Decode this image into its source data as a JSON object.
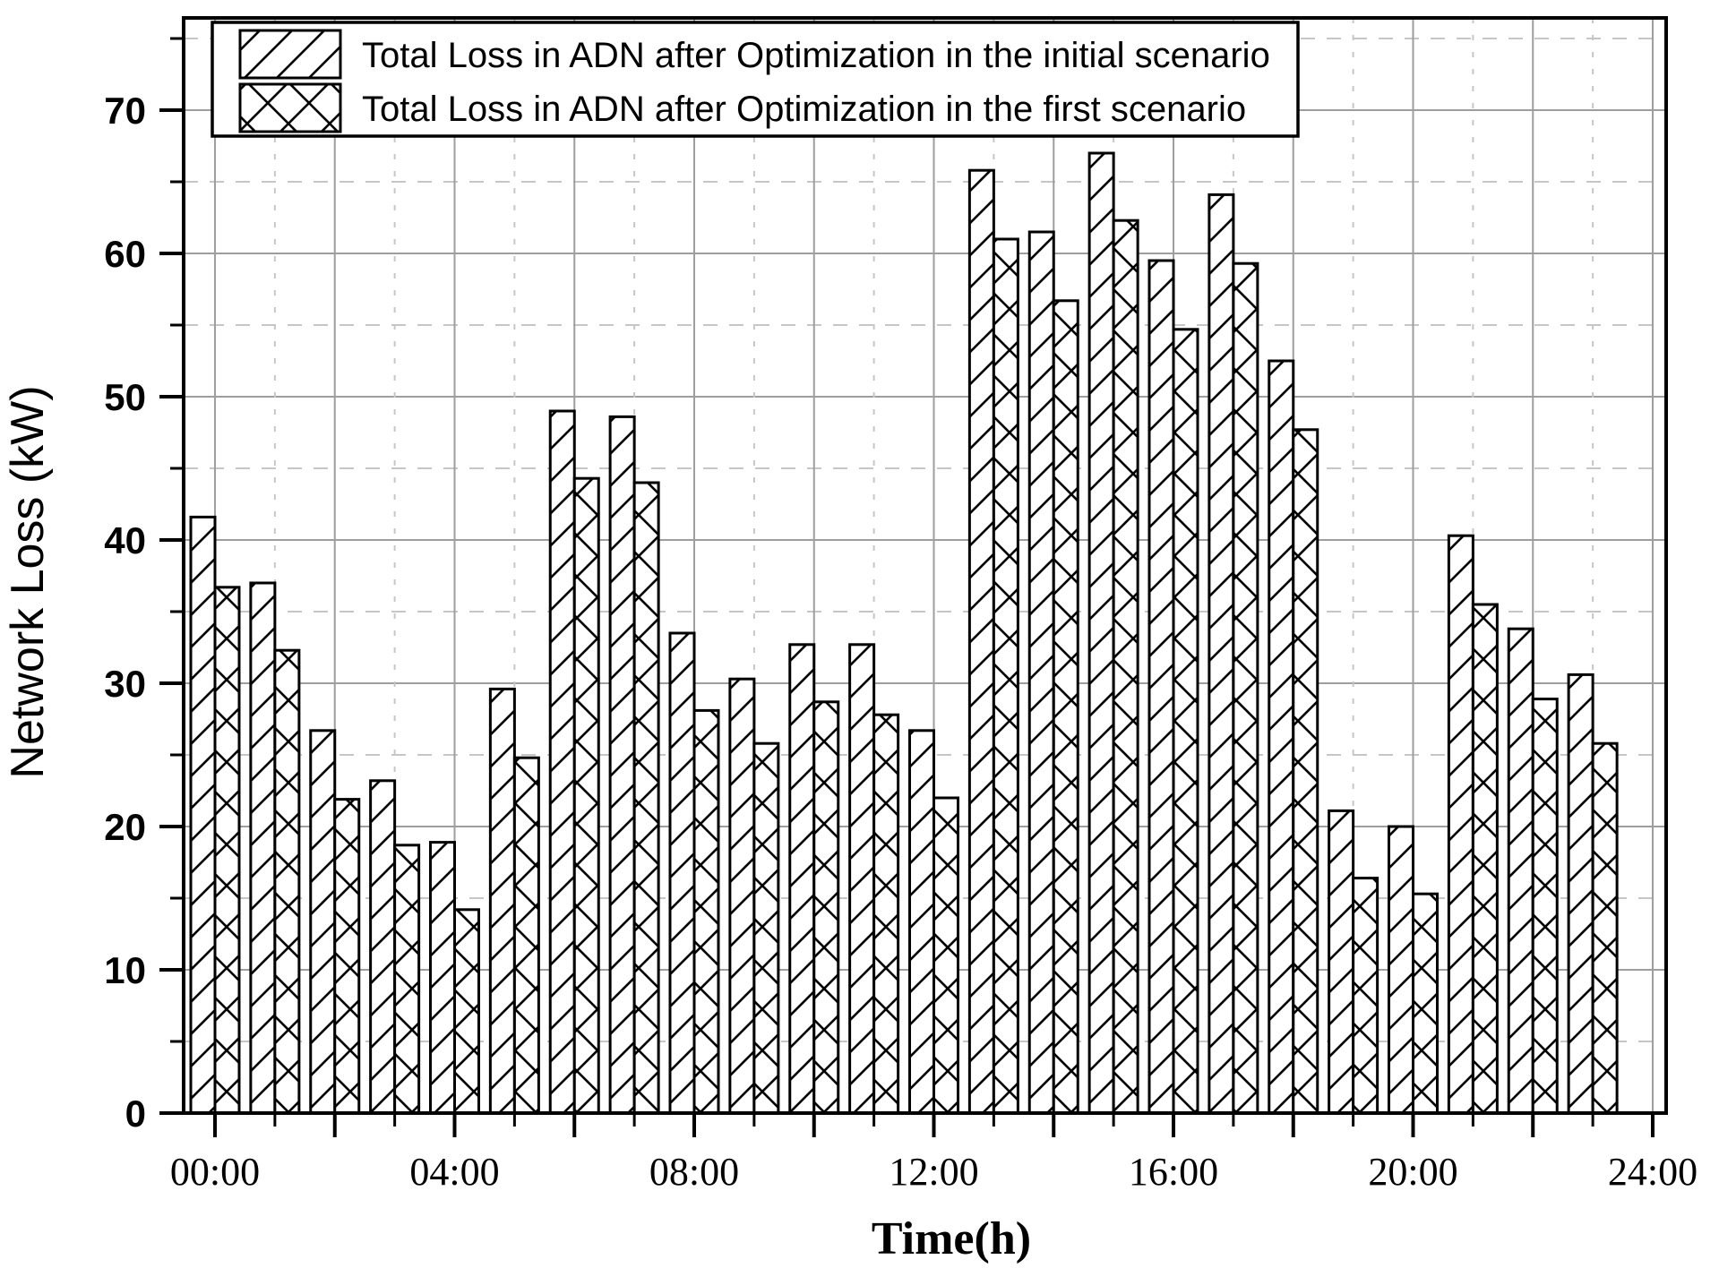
{
  "page": {
    "background": "#ffffff"
  },
  "legend": {
    "position": "top-left",
    "items": [
      {
        "label": "Total Loss in ADN after Optimization in the initial scenario",
        "swatch": "diagonal-hatch-icon"
      },
      {
        "label": "Total Loss in ADN after Optimization in the first scenario",
        "swatch": "cross-hatch-icon"
      }
    ]
  },
  "chart_data": {
    "type": "bar",
    "title": "",
    "xlabel": "Time(h)",
    "ylabel": "Network Loss (kW)",
    "ylim": [
      0,
      76
    ],
    "yticks": [
      0,
      10,
      20,
      30,
      40,
      50,
      60,
      70
    ],
    "xticks": [
      {
        "hour": 0,
        "label": "00:00"
      },
      {
        "hour": 4,
        "label": "04:00"
      },
      {
        "hour": 8,
        "label": "08:00"
      },
      {
        "hour": 12,
        "label": "12:00"
      },
      {
        "hour": 16,
        "label": "16:00"
      },
      {
        "hour": 20,
        "label": "20:00"
      },
      {
        "hour": 24,
        "label": "24:00"
      }
    ],
    "categories": [
      "00:00",
      "01:00",
      "02:00",
      "03:00",
      "04:00",
      "05:00",
      "06:00",
      "07:00",
      "08:00",
      "09:00",
      "10:00",
      "11:00",
      "12:00",
      "13:00",
      "14:00",
      "15:00",
      "16:00",
      "17:00",
      "18:00",
      "19:00",
      "20:00",
      "21:00",
      "22:00",
      "23:00"
    ],
    "x_hours": [
      0,
      1,
      2,
      3,
      4,
      5,
      6,
      7,
      8,
      9,
      10,
      11,
      12,
      13,
      14,
      15,
      16,
      17,
      18,
      19,
      20,
      21,
      22,
      23
    ],
    "series": [
      {
        "name": "Total Loss in ADN after Optimization in the initial scenario",
        "hatch": "diagonal",
        "values": [
          41.6,
          37.0,
          26.7,
          23.2,
          18.9,
          29.6,
          49.0,
          48.6,
          33.5,
          30.3,
          32.7,
          32.7,
          26.7,
          65.8,
          61.5,
          67.0,
          59.5,
          64.1,
          52.5,
          21.1,
          20.0,
          40.3,
          33.8,
          30.6
        ]
      },
      {
        "name": "Total Loss in ADN after Optimization in the first scenario",
        "hatch": "cross",
        "values": [
          36.7,
          32.3,
          21.9,
          18.7,
          14.2,
          24.8,
          44.3,
          44.0,
          28.1,
          25.8,
          28.7,
          27.8,
          22.0,
          61.0,
          56.7,
          62.3,
          54.7,
          59.3,
          47.7,
          16.4,
          15.3,
          35.5,
          28.9,
          25.8
        ]
      }
    ],
    "grid": {
      "h_solid_every": 10,
      "h_dashed_every": 5,
      "v_solid_hours": "even",
      "v_dashed_hours": "odd"
    },
    "colors": {
      "bar_fill": "#ffffff",
      "bar_stroke": "#000000",
      "grid_solid": "#9e9e9e",
      "grid_dashed": "#c6c6c6",
      "frame": "#000000"
    }
  }
}
